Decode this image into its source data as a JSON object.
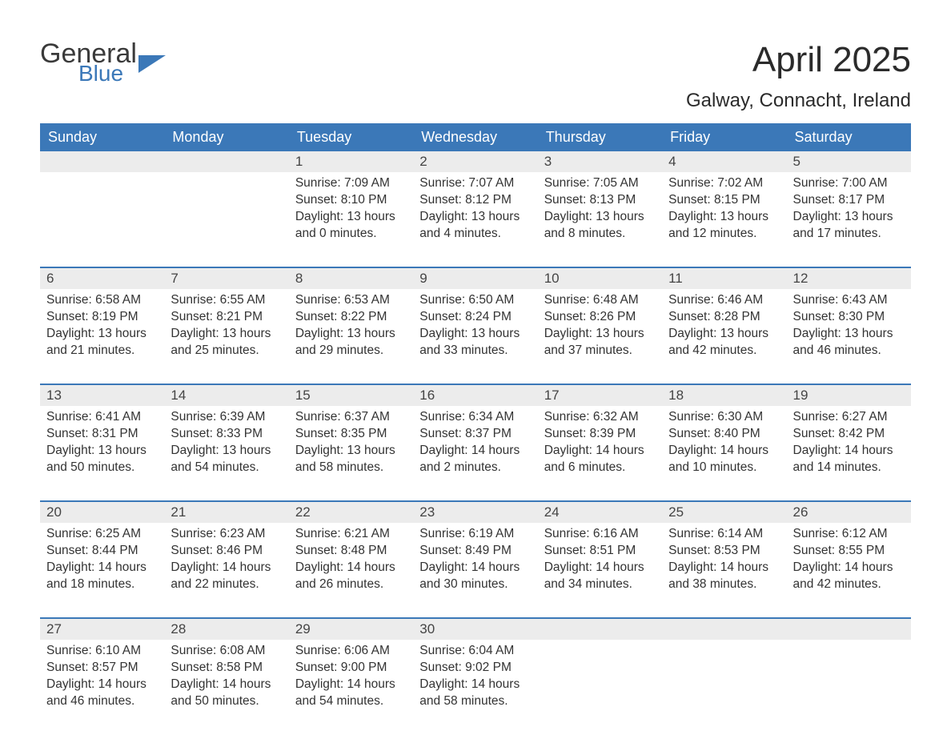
{
  "brand": {
    "line1": "General",
    "line2": "Blue"
  },
  "title": "April 2025",
  "location": "Galway, Connacht, Ireland",
  "colors": {
    "header_bg": "#3b78b8",
    "header_text": "#ffffff",
    "daynum_bg": "#ececec",
    "body_text": "#333333",
    "week_border": "#3b78b8",
    "page_bg": "#ffffff"
  },
  "day_names": [
    "Sunday",
    "Monday",
    "Tuesday",
    "Wednesday",
    "Thursday",
    "Friday",
    "Saturday"
  ],
  "weeks": [
    [
      {
        "day": "",
        "sunrise": "",
        "sunset": "",
        "daylight1": "",
        "daylight2": ""
      },
      {
        "day": "",
        "sunrise": "",
        "sunset": "",
        "daylight1": "",
        "daylight2": ""
      },
      {
        "day": "1",
        "sunrise": "Sunrise: 7:09 AM",
        "sunset": "Sunset: 8:10 PM",
        "daylight1": "Daylight: 13 hours",
        "daylight2": "and 0 minutes."
      },
      {
        "day": "2",
        "sunrise": "Sunrise: 7:07 AM",
        "sunset": "Sunset: 8:12 PM",
        "daylight1": "Daylight: 13 hours",
        "daylight2": "and 4 minutes."
      },
      {
        "day": "3",
        "sunrise": "Sunrise: 7:05 AM",
        "sunset": "Sunset: 8:13 PM",
        "daylight1": "Daylight: 13 hours",
        "daylight2": "and 8 minutes."
      },
      {
        "day": "4",
        "sunrise": "Sunrise: 7:02 AM",
        "sunset": "Sunset: 8:15 PM",
        "daylight1": "Daylight: 13 hours",
        "daylight2": "and 12 minutes."
      },
      {
        "day": "5",
        "sunrise": "Sunrise: 7:00 AM",
        "sunset": "Sunset: 8:17 PM",
        "daylight1": "Daylight: 13 hours",
        "daylight2": "and 17 minutes."
      }
    ],
    [
      {
        "day": "6",
        "sunrise": "Sunrise: 6:58 AM",
        "sunset": "Sunset: 8:19 PM",
        "daylight1": "Daylight: 13 hours",
        "daylight2": "and 21 minutes."
      },
      {
        "day": "7",
        "sunrise": "Sunrise: 6:55 AM",
        "sunset": "Sunset: 8:21 PM",
        "daylight1": "Daylight: 13 hours",
        "daylight2": "and 25 minutes."
      },
      {
        "day": "8",
        "sunrise": "Sunrise: 6:53 AM",
        "sunset": "Sunset: 8:22 PM",
        "daylight1": "Daylight: 13 hours",
        "daylight2": "and 29 minutes."
      },
      {
        "day": "9",
        "sunrise": "Sunrise: 6:50 AM",
        "sunset": "Sunset: 8:24 PM",
        "daylight1": "Daylight: 13 hours",
        "daylight2": "and 33 minutes."
      },
      {
        "day": "10",
        "sunrise": "Sunrise: 6:48 AM",
        "sunset": "Sunset: 8:26 PM",
        "daylight1": "Daylight: 13 hours",
        "daylight2": "and 37 minutes."
      },
      {
        "day": "11",
        "sunrise": "Sunrise: 6:46 AM",
        "sunset": "Sunset: 8:28 PM",
        "daylight1": "Daylight: 13 hours",
        "daylight2": "and 42 minutes."
      },
      {
        "day": "12",
        "sunrise": "Sunrise: 6:43 AM",
        "sunset": "Sunset: 8:30 PM",
        "daylight1": "Daylight: 13 hours",
        "daylight2": "and 46 minutes."
      }
    ],
    [
      {
        "day": "13",
        "sunrise": "Sunrise: 6:41 AM",
        "sunset": "Sunset: 8:31 PM",
        "daylight1": "Daylight: 13 hours",
        "daylight2": "and 50 minutes."
      },
      {
        "day": "14",
        "sunrise": "Sunrise: 6:39 AM",
        "sunset": "Sunset: 8:33 PM",
        "daylight1": "Daylight: 13 hours",
        "daylight2": "and 54 minutes."
      },
      {
        "day": "15",
        "sunrise": "Sunrise: 6:37 AM",
        "sunset": "Sunset: 8:35 PM",
        "daylight1": "Daylight: 13 hours",
        "daylight2": "and 58 minutes."
      },
      {
        "day": "16",
        "sunrise": "Sunrise: 6:34 AM",
        "sunset": "Sunset: 8:37 PM",
        "daylight1": "Daylight: 14 hours",
        "daylight2": "and 2 minutes."
      },
      {
        "day": "17",
        "sunrise": "Sunrise: 6:32 AM",
        "sunset": "Sunset: 8:39 PM",
        "daylight1": "Daylight: 14 hours",
        "daylight2": "and 6 minutes."
      },
      {
        "day": "18",
        "sunrise": "Sunrise: 6:30 AM",
        "sunset": "Sunset: 8:40 PM",
        "daylight1": "Daylight: 14 hours",
        "daylight2": "and 10 minutes."
      },
      {
        "day": "19",
        "sunrise": "Sunrise: 6:27 AM",
        "sunset": "Sunset: 8:42 PM",
        "daylight1": "Daylight: 14 hours",
        "daylight2": "and 14 minutes."
      }
    ],
    [
      {
        "day": "20",
        "sunrise": "Sunrise: 6:25 AM",
        "sunset": "Sunset: 8:44 PM",
        "daylight1": "Daylight: 14 hours",
        "daylight2": "and 18 minutes."
      },
      {
        "day": "21",
        "sunrise": "Sunrise: 6:23 AM",
        "sunset": "Sunset: 8:46 PM",
        "daylight1": "Daylight: 14 hours",
        "daylight2": "and 22 minutes."
      },
      {
        "day": "22",
        "sunrise": "Sunrise: 6:21 AM",
        "sunset": "Sunset: 8:48 PM",
        "daylight1": "Daylight: 14 hours",
        "daylight2": "and 26 minutes."
      },
      {
        "day": "23",
        "sunrise": "Sunrise: 6:19 AM",
        "sunset": "Sunset: 8:49 PM",
        "daylight1": "Daylight: 14 hours",
        "daylight2": "and 30 minutes."
      },
      {
        "day": "24",
        "sunrise": "Sunrise: 6:16 AM",
        "sunset": "Sunset: 8:51 PM",
        "daylight1": "Daylight: 14 hours",
        "daylight2": "and 34 minutes."
      },
      {
        "day": "25",
        "sunrise": "Sunrise: 6:14 AM",
        "sunset": "Sunset: 8:53 PM",
        "daylight1": "Daylight: 14 hours",
        "daylight2": "and 38 minutes."
      },
      {
        "day": "26",
        "sunrise": "Sunrise: 6:12 AM",
        "sunset": "Sunset: 8:55 PM",
        "daylight1": "Daylight: 14 hours",
        "daylight2": "and 42 minutes."
      }
    ],
    [
      {
        "day": "27",
        "sunrise": "Sunrise: 6:10 AM",
        "sunset": "Sunset: 8:57 PM",
        "daylight1": "Daylight: 14 hours",
        "daylight2": "and 46 minutes."
      },
      {
        "day": "28",
        "sunrise": "Sunrise: 6:08 AM",
        "sunset": "Sunset: 8:58 PM",
        "daylight1": "Daylight: 14 hours",
        "daylight2": "and 50 minutes."
      },
      {
        "day": "29",
        "sunrise": "Sunrise: 6:06 AM",
        "sunset": "Sunset: 9:00 PM",
        "daylight1": "Daylight: 14 hours",
        "daylight2": "and 54 minutes."
      },
      {
        "day": "30",
        "sunrise": "Sunrise: 6:04 AM",
        "sunset": "Sunset: 9:02 PM",
        "daylight1": "Daylight: 14 hours",
        "daylight2": "and 58 minutes."
      },
      {
        "day": "",
        "sunrise": "",
        "sunset": "",
        "daylight1": "",
        "daylight2": ""
      },
      {
        "day": "",
        "sunrise": "",
        "sunset": "",
        "daylight1": "",
        "daylight2": ""
      },
      {
        "day": "",
        "sunrise": "",
        "sunset": "",
        "daylight1": "",
        "daylight2": ""
      }
    ]
  ]
}
